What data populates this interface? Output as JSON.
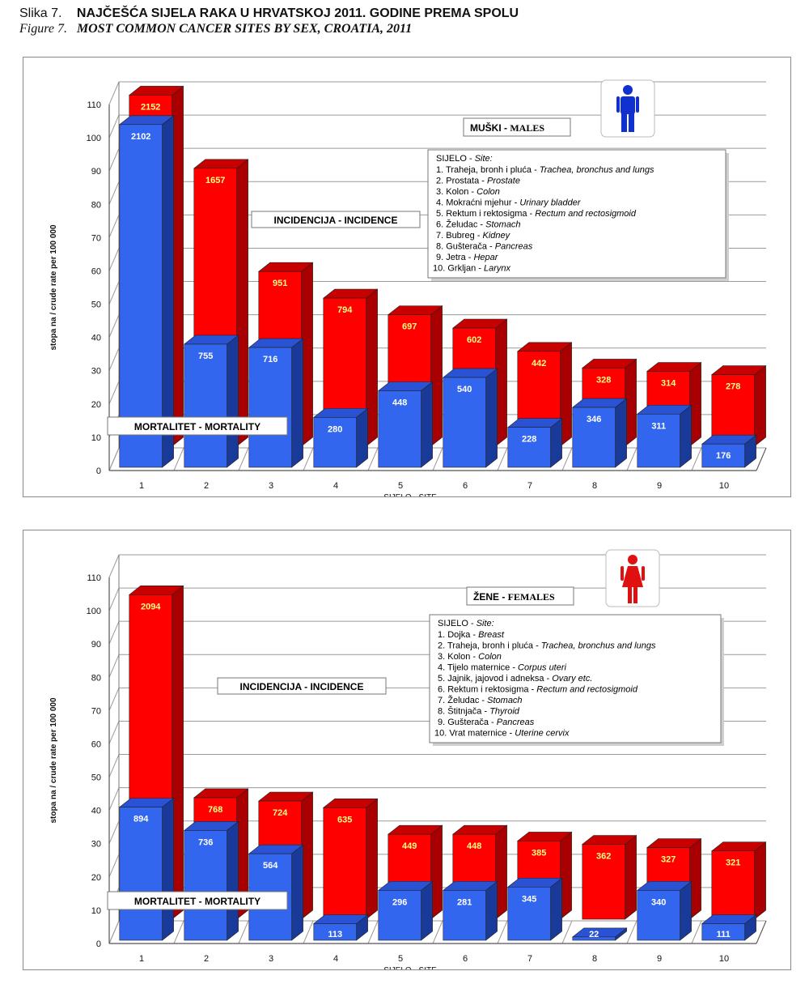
{
  "header": {
    "slika_label": "Slika 7.",
    "slika_title": "NAJČEŠĆA SIJELA RAKA U HRVATSKOJ 2011. GODINE PREMA SPOLU",
    "figure_label": "Figure 7.",
    "figure_title": "MOST COMMON CANCER SITES BY SEX, CROATIA, 2011"
  },
  "colors": {
    "incidence": "#ff0000",
    "incidence_dark": "#a80000",
    "incidence_top": "#c80000",
    "mortality": "#3366ee",
    "mortality_dark": "#1a3a99",
    "mortality_top": "#2a52d4",
    "male_icon": "#1030d0",
    "female_icon": "#e01010"
  },
  "chart_data": [
    {
      "type": "bar",
      "icon": "male-person-icon",
      "sex_label": "MUŠKI",
      "sex_label_en": "MALES",
      "incidence_label": "INCIDENCIJA - INCIDENCE",
      "mortality_label": "MORTALITET - MORTALITY",
      "ylabel": "stopa na / crude rate per 100 000",
      "xlabel": "SIJELO - SITE",
      "ylim": [
        0,
        110
      ],
      "yticks": [
        0,
        10,
        20,
        30,
        40,
        50,
        60,
        70,
        80,
        90,
        100,
        110
      ],
      "categories": [
        "1",
        "2",
        "3",
        "4",
        "5",
        "6",
        "7",
        "8",
        "9",
        "10"
      ],
      "series": [
        {
          "name": "INCIDENCIJA - INCIDENCE",
          "values": [
            106,
            84,
            53,
            45,
            40,
            36,
            29,
            24,
            23,
            22
          ],
          "labels": [
            "2152",
            "1657",
            "951",
            "794",
            "697",
            "602",
            "442",
            "328",
            "314",
            "278"
          ]
        },
        {
          "name": "MORTALITET - MORTALITY",
          "values": [
            103,
            37,
            36,
            15,
            23,
            27,
            12,
            18,
            16,
            7
          ],
          "labels": [
            "2102",
            "755",
            "716",
            "280",
            "448",
            "540",
            "228",
            "346",
            "311",
            "176"
          ]
        }
      ],
      "legend": {
        "header": "SIJELO",
        "header_en": "Site:",
        "items": [
          {
            "hr": "1. Traheja, bronh i pluća",
            "en": "Trachea, bronchus and lungs"
          },
          {
            "hr": "2. Prostata",
            "en": "Prostate"
          },
          {
            "hr": "3. Kolon",
            "en": "Colon"
          },
          {
            "hr": "4. Mokraćni mjehur",
            "en": "Urinary bladder"
          },
          {
            "hr": "5. Rektum i rektosigma",
            "en": "Rectum and rectosigmoid"
          },
          {
            "hr": "6. Želudac",
            "en": "Stomach"
          },
          {
            "hr": "7. Bubreg",
            "en": "Kidney"
          },
          {
            "hr": "8. Gušterača",
            "en": "Pancreas"
          },
          {
            "hr": "9. Jetra",
            "en": "Hepar"
          },
          {
            "hr": "10. Grkljan",
            "en": "Larynx"
          }
        ]
      }
    },
    {
      "type": "bar",
      "icon": "female-person-icon",
      "sex_label": "ŽENE",
      "sex_label_en": "FEMALES",
      "incidence_label": "INCIDENCIJA - INCIDENCE",
      "mortality_label": "MORTALITET - MORTALITY",
      "ylabel": "stopa na / crude rate per 100 000",
      "xlabel": "SIJELO - SITE",
      "ylim": [
        0,
        110
      ],
      "yticks": [
        0,
        10,
        20,
        30,
        40,
        50,
        60,
        70,
        80,
        90,
        100,
        110
      ],
      "categories": [
        "1",
        "2",
        "3",
        "4",
        "5",
        "6",
        "7",
        "8",
        "9",
        "10"
      ],
      "series": [
        {
          "name": "INCIDENCIJA - INCIDENCE",
          "values": [
            98,
            37,
            36,
            34,
            26,
            26,
            24,
            23,
            22,
            21
          ],
          "labels": [
            "2094",
            "768",
            "724",
            "635",
            "449",
            "448",
            "385",
            "362",
            "327",
            "321"
          ]
        },
        {
          "name": "MORTALITET - MORTALITY",
          "values": [
            40,
            33,
            26,
            5,
            15,
            15,
            16,
            1,
            15,
            5
          ],
          "labels": [
            "894",
            "736",
            "564",
            "113",
            "296",
            "281",
            "345",
            "22",
            "340",
            "111"
          ]
        }
      ],
      "legend": {
        "header": "SIJELO",
        "header_en": "Site:",
        "items": [
          {
            "hr": "1. Dojka",
            "en": "Breast"
          },
          {
            "hr": "2. Traheja, bronh i pluća",
            "en": "Trachea, bronchus and lungs"
          },
          {
            "hr": "3. Kolon",
            "en": "Colon"
          },
          {
            "hr": "4. Tijelo maternice",
            "en": "Corpus uteri"
          },
          {
            "hr": "5. Jajnik, jajovod i adneksa",
            "en": "Ovary etc."
          },
          {
            "hr": "6. Rektum i rektosigma",
            "en": "Rectum and rectosigmoid"
          },
          {
            "hr": "7. Želudac",
            "en": "Stomach"
          },
          {
            "hr": "8. Štitnjača",
            "en": "Thyroid"
          },
          {
            "hr": "9. Gušterača",
            "en": "Pancreas"
          },
          {
            "hr": "10. Vrat maternice",
            "en": "Uterine cervix"
          }
        ]
      }
    }
  ]
}
